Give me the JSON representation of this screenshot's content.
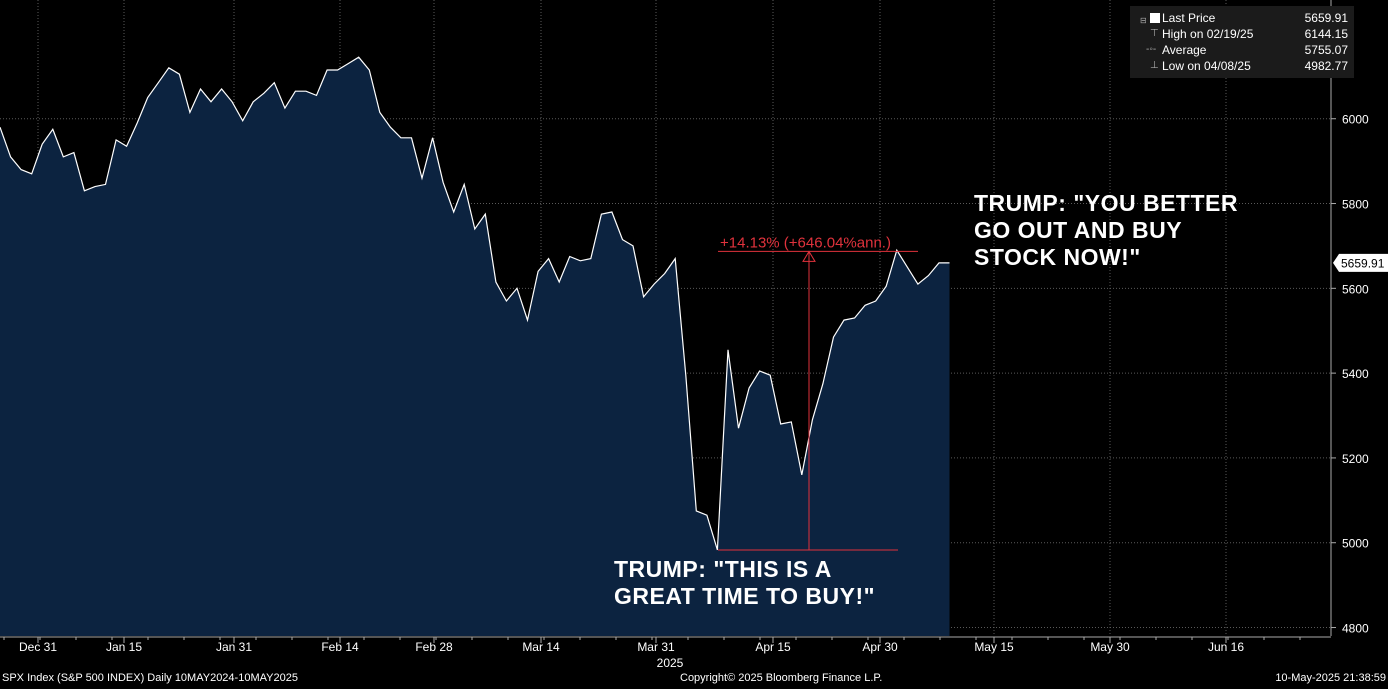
{
  "chart_data": {
    "type": "area",
    "title": "",
    "xlabel": "",
    "ylabel": "",
    "ylim": [
      4780,
      6280
    ],
    "y_ticks": [
      4800,
      5000,
      5200,
      5400,
      5600,
      5800,
      6000
    ],
    "grid": true,
    "x_tick_labels": [
      "Dec 31",
      "Jan 15",
      "Jan 31",
      "Feb 14",
      "Feb 28",
      "Mar 14",
      "Mar 31",
      "Apr 15",
      "Apr 30",
      "May 15",
      "May 30",
      "Jun 16"
    ],
    "x_year_label": "2025",
    "series": [
      {
        "values": [
          5980,
          5910,
          5880,
          5870,
          5940,
          5975,
          5910,
          5920,
          5830,
          5840,
          5845,
          5950,
          5935,
          5990,
          6050,
          6085,
          6120,
          6105,
          6015,
          6070,
          6040,
          6070,
          6040,
          5995,
          6040,
          6060,
          6085,
          6025,
          6065,
          6065,
          6055,
          6115,
          6115,
          6130,
          6145,
          6115,
          6015,
          5980,
          5955,
          5955,
          5860,
          5955,
          5850,
          5780,
          5845,
          5740,
          5775,
          5615,
          5570,
          5600,
          5525,
          5640,
          5670,
          5615,
          5675,
          5665,
          5670,
          5775,
          5780,
          5715,
          5700,
          5580,
          5610,
          5635,
          5670,
          5395,
          5075,
          5065,
          4983,
          5455,
          5270,
          5365,
          5405,
          5395,
          5280,
          5285,
          5160,
          5290,
          5375,
          5485,
          5525,
          5530,
          5560,
          5570,
          5605,
          5690,
          5650,
          5610,
          5630,
          5660,
          5659.91
        ]
      }
    ],
    "range_measure": {
      "label": "+14.13% (+646.04%ann.)",
      "from": 4982.77,
      "to": 5687
    },
    "last_price_tag": "5659.91"
  },
  "legend": [
    {
      "label": "Last Price",
      "value": "5659.91",
      "icon": "square-icon"
    },
    {
      "label": "High on 02/19/25",
      "value": "6144.15",
      "icon": "high-marker-icon"
    },
    {
      "label": "Average",
      "value": "5755.07",
      "icon": "average-marker-icon"
    },
    {
      "label": "Low on 04/08/25",
      "value": "4982.77",
      "icon": "low-marker-icon"
    }
  ],
  "annotations": {
    "top": "TRUMP: \"YOU BETTER\nGO OUT AND BUY\nSTOCK NOW!\"",
    "bottom": "TRUMP: \"THIS IS A\nGREAT TIME TO BUY!\""
  },
  "footer": {
    "left": "SPX Index (S&P 500 INDEX)  Daily 10MAY2024-10MAY2025",
    "center": "Copyright© 2025 Bloomberg Finance L.P.",
    "right": "10-May-2025 21:38:59"
  },
  "colors": {
    "area_fill": "#0c2340",
    "line": "#ffffff",
    "measure": "#e0323c",
    "grid": "#5a5a5a"
  }
}
